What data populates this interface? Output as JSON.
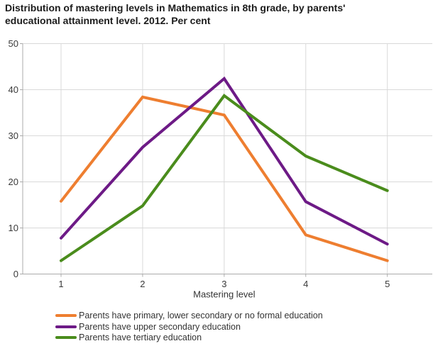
{
  "title": "Distribution of mastering levels in Mathematics in 8th grade, by parents' educational attainment level. 2012. Per cent",
  "chart_data": {
    "type": "line",
    "x": [
      1,
      2,
      3,
      4,
      5
    ],
    "xticks": [
      "1",
      "2",
      "3",
      "4",
      "5"
    ],
    "yticks": [
      0,
      10,
      20,
      30,
      40,
      50
    ],
    "ylim": [
      0,
      50
    ],
    "xlabel": "Mastering level",
    "ylabel": "",
    "grid": true,
    "legend_position": "bottom-left",
    "title": "Distribution of mastering levels in Mathematics in 8th grade, by parents' educational attainment level. 2012. Per cent",
    "series": [
      {
        "name": "Parents have primary, lower secondary or no formal education",
        "color": "#ee7e30",
        "values": [
          15.8,
          38.4,
          34.5,
          8.5,
          2.9
        ]
      },
      {
        "name": "Parents have upper secondary education",
        "color": "#6d1a86",
        "values": [
          7.8,
          27.5,
          42.4,
          15.7,
          6.5
        ]
      },
      {
        "name": "Parents have tertiary education",
        "color": "#4a8c1c",
        "values": [
          2.9,
          14.8,
          38.7,
          25.6,
          18.1
        ]
      }
    ]
  },
  "colors": {
    "gridline": "#d9d9d9",
    "axis": "#ababab",
    "tick_label": "#3a3a3a",
    "axis_label": "#333333",
    "title": "#1c1c1c",
    "background": "#ffffff"
  }
}
